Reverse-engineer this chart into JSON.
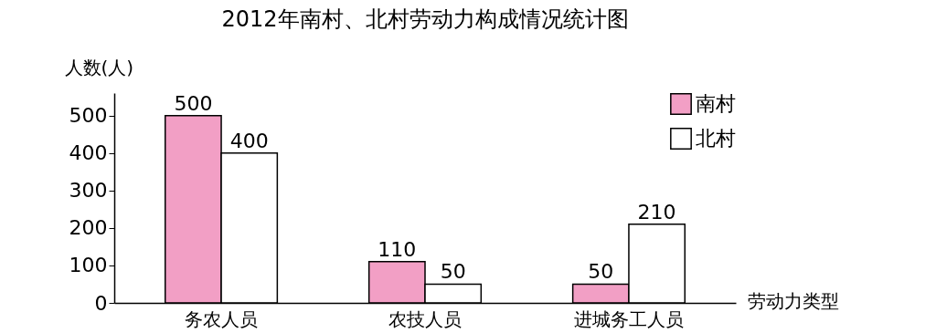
{
  "chart_data": {
    "type": "bar",
    "title": "2012年南村、北村劳动力构成情况统计图",
    "xlabel": "劳动力类型",
    "ylabel": "人数(人)",
    "categories": [
      "务农人员",
      "农技人员",
      "进城务工人员"
    ],
    "series": [
      {
        "name": "南村",
        "color": "#f29fc5",
        "values": [
          500,
          110,
          50
        ]
      },
      {
        "name": "北村",
        "color": "#ffffff",
        "values": [
          400,
          50,
          210
        ]
      }
    ],
    "ylim": [
      0,
      560
    ],
    "yticks": [
      0,
      100,
      200,
      300,
      400,
      500
    ],
    "grid": false,
    "legend": "top right",
    "data_labels": true
  }
}
